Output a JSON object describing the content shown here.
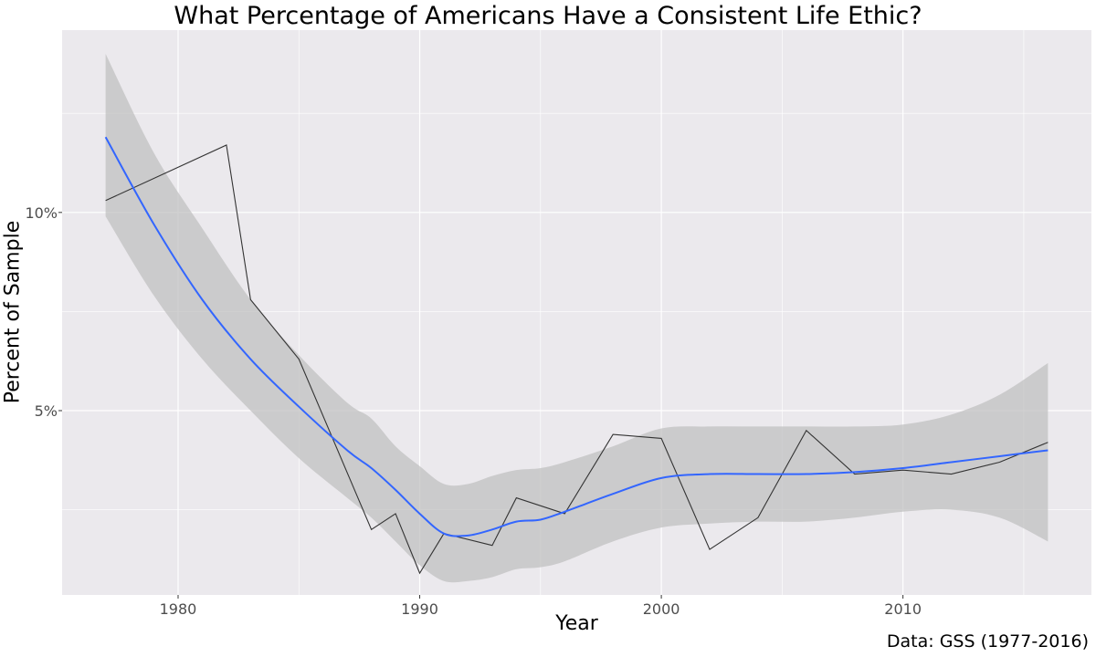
{
  "chart_data": {
    "type": "line",
    "title": "What Percentage of Americans Have a Consistent Life Ethic?",
    "xlabel": "Year",
    "ylabel": "Percent of Sample",
    "caption": "Data: GSS (1977-2016)",
    "xlim": [
      1975.2,
      2017.8
    ],
    "ylim": [
      0.35,
      14.6
    ],
    "x_ticks": [
      1980,
      1990,
      2000,
      2010
    ],
    "y_ticks": [
      5,
      10
    ],
    "y_tick_labels": [
      "5%",
      "10%"
    ],
    "grid": true,
    "colors": {
      "panel_background": "#ebe9ed",
      "grid": "#ffffff",
      "raw_line": "#333333",
      "smooth_line": "#3366ff",
      "ribbon": "#bdbdbd"
    },
    "series": [
      {
        "x": [
          1977,
          1982,
          1983,
          1985,
          1988,
          1989,
          1990,
          1991,
          1993,
          1994,
          1996,
          1998,
          2000,
          2002,
          2004,
          2006,
          2008,
          2010,
          2012,
          2014,
          2016
        ],
        "y": [
          10.3,
          11.7,
          7.8,
          6.3,
          2.0,
          2.4,
          0.9,
          1.9,
          1.6,
          2.8,
          2.4,
          4.4,
          4.3,
          1.5,
          2.3,
          4.5,
          3.4,
          3.5,
          3.4,
          3.7,
          4.2
        ]
      },
      {
        "x": [
          1977,
          1979,
          1981,
          1983,
          1985,
          1987,
          1988,
          1989,
          1990,
          1991,
          1992,
          1993,
          1994,
          1995,
          1996,
          1998,
          2000,
          2002,
          2004,
          2006,
          2008,
          2010,
          2012,
          2014,
          2016
        ],
        "y": [
          11.9,
          9.7,
          7.8,
          6.3,
          5.1,
          4.0,
          3.55,
          3.0,
          2.4,
          1.9,
          1.85,
          2.0,
          2.2,
          2.25,
          2.45,
          2.9,
          3.3,
          3.4,
          3.4,
          3.4,
          3.45,
          3.55,
          3.7,
          3.85,
          4.0
        ],
        "ci_lower": [
          9.9,
          7.9,
          6.3,
          5.0,
          3.8,
          2.8,
          2.3,
          1.7,
          1.1,
          0.7,
          0.7,
          0.8,
          1.0,
          1.05,
          1.2,
          1.7,
          2.05,
          2.15,
          2.2,
          2.2,
          2.3,
          2.45,
          2.5,
          2.3,
          1.7
        ],
        "ci_upper": [
          14.0,
          11.5,
          9.6,
          7.8,
          6.4,
          5.2,
          4.8,
          4.1,
          3.6,
          3.15,
          3.15,
          3.35,
          3.5,
          3.55,
          3.7,
          4.1,
          4.55,
          4.6,
          4.6,
          4.6,
          4.6,
          4.65,
          4.9,
          5.4,
          6.2
        ]
      }
    ]
  }
}
